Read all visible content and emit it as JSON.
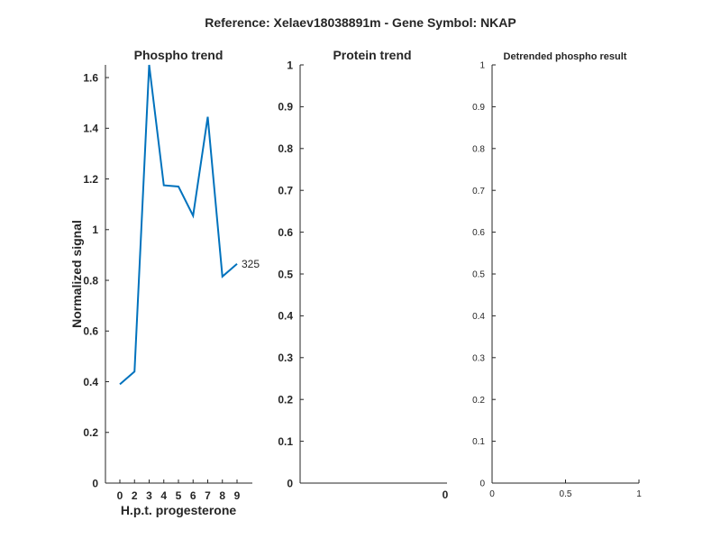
{
  "figure_title": "Reference:  Xelaev18038891m - Gene Symbol:  NKAP",
  "colors": {
    "series": "#0072BD",
    "axis": "#262626"
  },
  "chart_data": [
    {
      "type": "line",
      "title": "Phospho trend",
      "xlabel": "H.p.t. progesterone",
      "ylabel": "Normalized signal",
      "categories": [
        "0",
        "2",
        "3",
        "4",
        "5",
        "6",
        "7",
        "8",
        "9"
      ],
      "series": [
        {
          "values": [
            0.39,
            0.44,
            1.65,
            1.175,
            1.17,
            1.055,
            1.445,
            0.815,
            0.865
          ]
        }
      ],
      "end_label": "325",
      "ylim": [
        0,
        1.65
      ],
      "yticks": [
        "0",
        "0.2",
        "0.4",
        "0.6",
        "0.8",
        "1",
        "1.2",
        "1.4",
        "1.6"
      ],
      "grid": false
    },
    {
      "type": "line",
      "title": "Protein trend",
      "xlabel": "",
      "ylabel": "",
      "xticks": [
        "0"
      ],
      "yticks": [
        "0",
        "0.1",
        "0.2",
        "0.3",
        "0.4",
        "0.5",
        "0.6",
        "0.7",
        "0.8",
        "0.9",
        "1"
      ],
      "ylim": [
        0,
        1
      ],
      "series": [],
      "grid": false
    },
    {
      "type": "line",
      "title": "Detrended phospho result",
      "xlabel": "",
      "ylabel": "",
      "xticks": [
        "0",
        "0.5",
        "1"
      ],
      "yticks": [
        "0",
        "0.1",
        "0.2",
        "0.3",
        "0.4",
        "0.5",
        "0.6",
        "0.7",
        "0.8",
        "0.9",
        "1"
      ],
      "xlim": [
        0,
        1
      ],
      "ylim": [
        0,
        1
      ],
      "series": [],
      "grid": false
    }
  ]
}
